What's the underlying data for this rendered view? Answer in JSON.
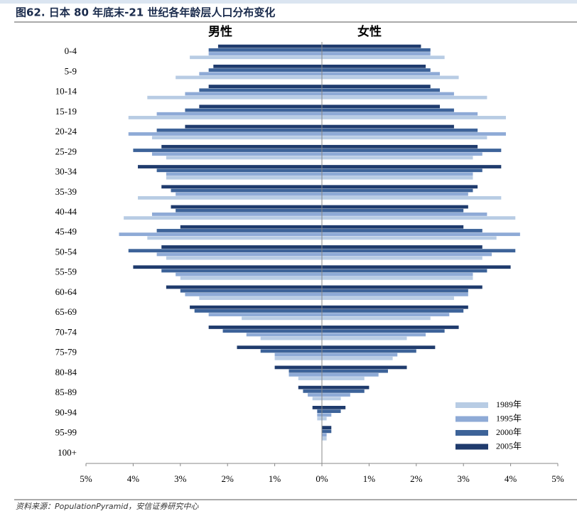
{
  "chart_data": {
    "type": "population-pyramid",
    "title": "图62. 日本 80 年底末-21 世纪各年龄层人口分布变化",
    "male_label": "男性",
    "female_label": "女性",
    "source": "资料来源：PopulationPyramid，安信证券研究中心",
    "categories": [
      "0-4",
      "5-9",
      "10-14",
      "15-19",
      "20-24",
      "25-29",
      "30-34",
      "35-39",
      "40-44",
      "45-49",
      "50-54",
      "55-59",
      "60-64",
      "65-69",
      "70-74",
      "75-79",
      "80-84",
      "85-89",
      "90-94",
      "95-99",
      "100+"
    ],
    "series": [
      {
        "name": "1989年",
        "color": "#b8cce4",
        "male": [
          2.8,
          3.1,
          3.7,
          4.1,
          3.6,
          3.3,
          3.3,
          3.9,
          4.2,
          3.7,
          3.3,
          3.0,
          2.6,
          1.7,
          1.3,
          1.0,
          0.5,
          0.2,
          0.1,
          0,
          0
        ],
        "female": [
          2.6,
          2.9,
          3.5,
          3.9,
          3.5,
          3.2,
          3.2,
          3.8,
          4.1,
          3.7,
          3.4,
          3.2,
          2.8,
          2.3,
          1.8,
          1.5,
          0.9,
          0.4,
          0.1,
          0.1,
          0
        ]
      },
      {
        "name": "1995年",
        "color": "#8eaad6",
        "male": [
          2.4,
          2.6,
          2.9,
          3.5,
          4.1,
          3.6,
          3.3,
          3.1,
          3.6,
          4.3,
          3.5,
          3.1,
          2.9,
          2.4,
          1.6,
          1.0,
          0.7,
          0.3,
          0.1,
          0,
          0
        ],
        "female": [
          2.3,
          2.5,
          2.8,
          3.3,
          3.9,
          3.4,
          3.2,
          3.1,
          3.5,
          4.2,
          3.6,
          3.2,
          3.1,
          2.7,
          2.2,
          1.6,
          1.2,
          0.6,
          0.2,
          0.1,
          0
        ]
      },
      {
        "name": "2000年",
        "color": "#3d6399",
        "male": [
          2.4,
          2.4,
          2.6,
          2.9,
          3.5,
          4.0,
          3.5,
          3.2,
          3.1,
          3.5,
          4.1,
          3.4,
          3.0,
          2.7,
          2.1,
          1.3,
          0.7,
          0.4,
          0.1,
          0,
          0
        ],
        "female": [
          2.3,
          2.3,
          2.5,
          2.8,
          3.3,
          3.8,
          3.4,
          3.2,
          3.0,
          3.4,
          4.1,
          3.5,
          3.1,
          3.0,
          2.6,
          2.0,
          1.4,
          0.9,
          0.4,
          0.2,
          0
        ]
      },
      {
        "name": "2005年",
        "color": "#1f3b6d",
        "male": [
          2.2,
          2.3,
          2.4,
          2.6,
          2.9,
          3.4,
          3.9,
          3.4,
          3.2,
          3.0,
          3.4,
          4.0,
          3.3,
          2.8,
          2.4,
          1.8,
          1.0,
          0.5,
          0.2,
          0,
          0
        ],
        "female": [
          2.1,
          2.2,
          2.3,
          2.5,
          2.8,
          3.3,
          3.8,
          3.3,
          3.1,
          3.0,
          3.4,
          4.0,
          3.4,
          3.1,
          2.9,
          2.4,
          1.8,
          1.0,
          0.5,
          0.2,
          0
        ]
      }
    ],
    "xlim": [
      -5,
      5
    ],
    "xticks": [
      {
        "value": -5,
        "label": "5%"
      },
      {
        "value": -4,
        "label": "4%"
      },
      {
        "value": -3,
        "label": "3%"
      },
      {
        "value": -2,
        "label": "2%"
      },
      {
        "value": -1,
        "label": "1%"
      },
      {
        "value": 0,
        "label": "0%"
      },
      {
        "value": 1,
        "label": "1%"
      },
      {
        "value": 2,
        "label": "2%"
      },
      {
        "value": 3,
        "label": "3%"
      },
      {
        "value": 4,
        "label": "4%"
      },
      {
        "value": 5,
        "label": "5%"
      }
    ]
  }
}
